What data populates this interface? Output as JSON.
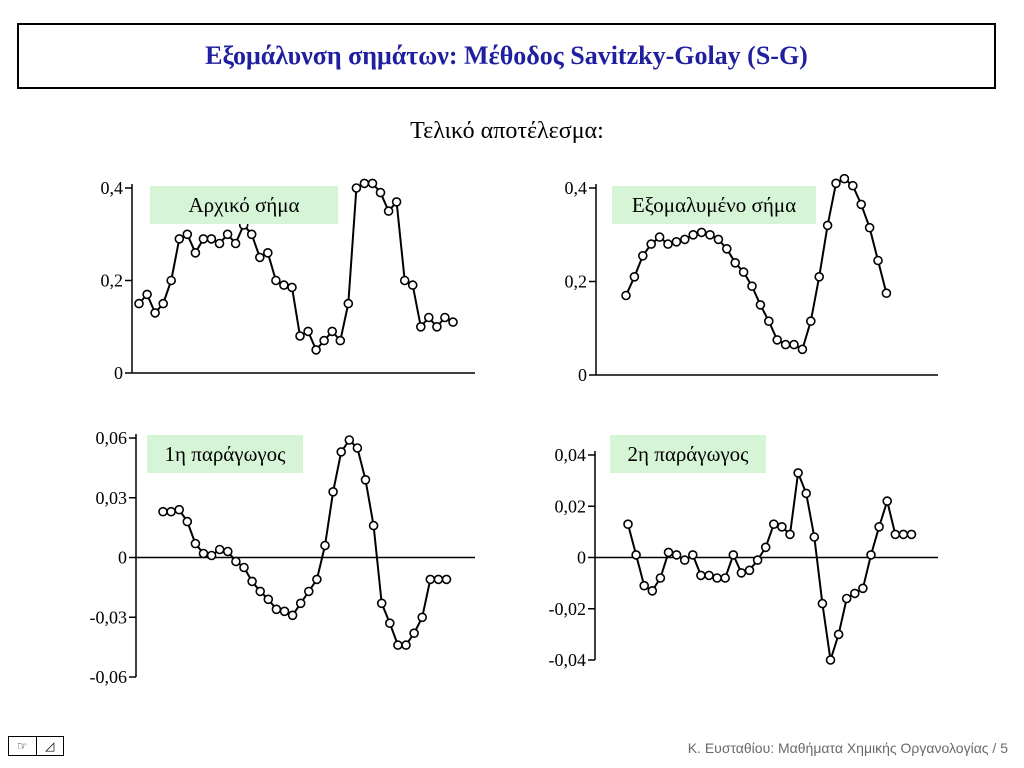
{
  "slide": {
    "title": "Εξομάλυνση σημάτων: Μέθοδος Savitzky-Golay (S-G)",
    "subtitle": "Τελικό αποτέλεσμα:",
    "footer": "Κ. Ευσταθίου: Μαθήματα Χημικής Οργανολογίας / 5",
    "nav_icons": [
      "hand-pointer-icon",
      "triangle-nav-icon"
    ]
  },
  "colors": {
    "title": "#1f1fa0",
    "label_bg": "#d6f5d6",
    "line": "#000000"
  },
  "chart_data": [
    {
      "type": "line",
      "label": "Αρχικό σήμα",
      "ylim": [
        0,
        0.45
      ],
      "yticks": [
        0,
        0.2,
        0.4
      ],
      "ytick_labels": [
        "0",
        "0,2",
        "0,4"
      ],
      "zero_line": false,
      "x": [
        0,
        1,
        2,
        3,
        4,
        5,
        6,
        7,
        8,
        9,
        10,
        11,
        12,
        13,
        14,
        15,
        16,
        17,
        18,
        19,
        20,
        21,
        22,
        23,
        24,
        25,
        26,
        27,
        28,
        29,
        30,
        31,
        32,
        33,
        34,
        35,
        36,
        37,
        38,
        39
      ],
      "values": [
        0.15,
        0.17,
        0.13,
        0.15,
        0.2,
        0.29,
        0.3,
        0.26,
        0.29,
        0.29,
        0.28,
        0.3,
        0.28,
        0.32,
        0.3,
        0.25,
        0.26,
        0.2,
        0.19,
        0.185,
        0.08,
        0.09,
        0.05,
        0.07,
        0.09,
        0.07,
        0.15,
        0.4,
        0.41,
        0.41,
        0.39,
        0.35,
        0.37,
        0.2,
        0.19,
        0.1,
        0.12,
        0.1,
        0.12,
        0.11
      ]
    },
    {
      "type": "line",
      "label": "Εξομαλυμένο σήμα",
      "ylim": [
        0,
        0.45
      ],
      "yticks": [
        0,
        0.2,
        0.4
      ],
      "ytick_labels": [
        "0",
        "0,2",
        "0,4"
      ],
      "zero_line": false,
      "x": [
        4,
        5,
        6,
        7,
        8,
        9,
        10,
        11,
        12,
        13,
        14,
        15,
        16,
        17,
        18,
        19,
        20,
        21,
        22,
        23,
        24,
        25,
        26,
        27,
        28,
        29,
        30,
        31,
        32,
        33,
        34,
        35
      ],
      "values": [
        0.17,
        0.21,
        0.255,
        0.28,
        0.295,
        0.28,
        0.285,
        0.29,
        0.3,
        0.305,
        0.3,
        0.29,
        0.27,
        0.24,
        0.22,
        0.19,
        0.15,
        0.115,
        0.075,
        0.065,
        0.065,
        0.055,
        0.115,
        0.21,
        0.32,
        0.41,
        0.42,
        0.405,
        0.365,
        0.315,
        0.245,
        0.175
      ]
    },
    {
      "type": "line",
      "label": "1η παράγωγος",
      "ylim": [
        -0.06,
        0.06
      ],
      "yticks": [
        -0.06,
        -0.03,
        0,
        0.03,
        0.06
      ],
      "ytick_labels": [
        "-0,06",
        "-0,03",
        "0",
        "0,03",
        "0,06"
      ],
      "zero_line": true,
      "x": [
        4,
        5,
        6,
        7,
        8,
        9,
        10,
        11,
        12,
        13,
        14,
        15,
        16,
        17,
        18,
        19,
        20,
        21,
        22,
        23,
        24,
        25,
        26,
        27,
        28,
        29,
        30,
        31,
        32,
        33,
        34,
        35,
        36,
        37,
        38,
        39
      ],
      "values": [
        0.023,
        0.023,
        0.024,
        0.018,
        0.007,
        0.002,
        0.001,
        0.004,
        0.003,
        -0.002,
        -0.005,
        -0.012,
        -0.017,
        -0.021,
        -0.026,
        -0.027,
        -0.029,
        -0.023,
        -0.017,
        -0.011,
        0.006,
        0.033,
        0.053,
        0.059,
        0.055,
        0.039,
        0.016,
        -0.023,
        -0.033,
        -0.044,
        -0.044,
        -0.038,
        -0.03,
        -0.011,
        -0.011,
        -0.011
      ]
    },
    {
      "type": "line",
      "label": "2η παράγωγος",
      "ylim": [
        -0.04,
        0.04
      ],
      "yticks": [
        -0.04,
        -0.02,
        0,
        0.02,
        0.04
      ],
      "ytick_labels": [
        "-0,04",
        "-0,02",
        "0",
        "0,02",
        "0,04"
      ],
      "zero_line": true,
      "x": [
        4,
        5,
        6,
        7,
        8,
        9,
        10,
        11,
        12,
        13,
        14,
        15,
        16,
        17,
        18,
        19,
        20,
        21,
        22,
        23,
        24,
        25,
        26,
        27,
        28,
        29,
        30,
        31,
        32,
        33,
        34,
        35,
        36,
        37,
        38,
        39
      ],
      "values": [
        0.013,
        0.001,
        -0.011,
        -0.013,
        -0.008,
        0.002,
        0.001,
        -0.001,
        0.001,
        -0.007,
        -0.007,
        -0.008,
        -0.008,
        0.001,
        -0.006,
        -0.005,
        -0.001,
        0.004,
        0.013,
        0.012,
        0.009,
        0.033,
        0.025,
        0.008,
        -0.018,
        -0.04,
        -0.03,
        -0.016,
        -0.014,
        -0.012,
        0.001,
        0.012,
        0.022,
        0.009,
        0.009,
        0.009
      ]
    }
  ]
}
